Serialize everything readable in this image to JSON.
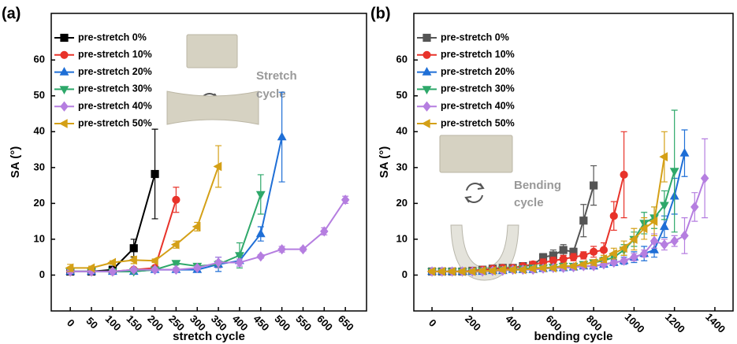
{
  "chart_data": [
    {
      "type": "line",
      "panel_label": "(a)",
      "x_label": "stretch cycle",
      "y_label": "SA (°)",
      "annotation": [
        "Stretch",
        "cycle"
      ],
      "legend": "upper left",
      "xlim": [
        -45,
        700
      ],
      "xticks": [
        0,
        50,
        100,
        150,
        200,
        250,
        300,
        350,
        400,
        450,
        500,
        550,
        600,
        650
      ],
      "ylim": [
        -10,
        73
      ],
      "yticks": [
        0,
        10,
        20,
        30,
        40,
        50,
        60
      ],
      "series": [
        {
          "name": "pre-stretch 0%",
          "color": "#000000",
          "marker": "square",
          "x": [
            0,
            50,
            100,
            150,
            200
          ],
          "values": [
            1,
            1,
            1.5,
            7.5,
            28.2
          ],
          "errors": [
            0.5,
            0.5,
            0.5,
            2.5,
            12.5
          ]
        },
        {
          "name": "pre-stretch 10%",
          "color": "#e8332a",
          "marker": "circle",
          "x": [
            0,
            50,
            100,
            150,
            200,
            250
          ],
          "values": [
            1,
            1,
            1,
            1.5,
            2,
            21
          ],
          "errors": [
            0.5,
            0.5,
            0.5,
            0.5,
            0.5,
            3.5
          ]
        },
        {
          "name": "pre-stretch 20%",
          "color": "#1f6fd6",
          "marker": "triangle-up",
          "x": [
            0,
            50,
            100,
            150,
            200,
            250,
            300,
            350,
            400,
            450,
            500
          ],
          "values": [
            1,
            1,
            1,
            1,
            1.5,
            1.5,
            1.5,
            3,
            4,
            11.5,
            38.5
          ],
          "errors": [
            0.5,
            0.5,
            0.5,
            0.5,
            0.5,
            0.5,
            0.5,
            2,
            1.5,
            2,
            12.5
          ]
        },
        {
          "name": "pre-stretch 30%",
          "color": "#2ea86a",
          "marker": "triangle-down",
          "x": [
            0,
            50,
            100,
            150,
            200,
            250,
            300,
            350,
            400,
            450
          ],
          "values": [
            1,
            1,
            1,
            1,
            1.5,
            3.3,
            2.5,
            3,
            5.5,
            22.5
          ],
          "errors": [
            0.5,
            0.5,
            0.5,
            0.5,
            0.5,
            0.5,
            0.5,
            1,
            3.5,
            5.5
          ]
        },
        {
          "name": "pre-stretch 40%",
          "color": "#b57ee0",
          "marker": "diamond",
          "x": [
            0,
            50,
            100,
            150,
            200,
            250,
            300,
            350,
            400,
            450,
            500,
            550,
            600,
            650
          ],
          "values": [
            1,
            1,
            1,
            1.5,
            1.5,
            1.5,
            2,
            3.5,
            3.5,
            5.2,
            7.2,
            7.2,
            12.2,
            21
          ],
          "errors": [
            0.5,
            0.5,
            0.5,
            0.5,
            0.5,
            0.5,
            0.5,
            1.5,
            1,
            0.5,
            0.8,
            0.5,
            1,
            1
          ]
        },
        {
          "name": "pre-stretch 50%",
          "color": "#d4a017",
          "marker": "triangle-left",
          "x": [
            0,
            50,
            100,
            150,
            200,
            250,
            300,
            350
          ],
          "values": [
            2,
            2,
            3.5,
            4.2,
            4,
            8.5,
            13.5,
            30.3
          ],
          "errors": [
            1,
            0.5,
            0.5,
            1,
            0.5,
            1,
            1.2,
            5.8
          ]
        }
      ]
    },
    {
      "type": "line",
      "panel_label": "(b)",
      "x_label": "bending cycle",
      "y_label": "SA (°)",
      "annotation": [
        "Bending",
        "cycle"
      ],
      "legend": "upper left",
      "xlim": [
        -90,
        1490
      ],
      "xticks": [
        0,
        200,
        400,
        600,
        800,
        1000,
        1200,
        1400
      ],
      "ylim": [
        -10,
        73
      ],
      "yticks": [
        0,
        10,
        20,
        30,
        40,
        50,
        60
      ],
      "series": [
        {
          "name": "pre-stretch 0%",
          "color": "#555555",
          "marker": "square",
          "x": [
            0,
            50,
            100,
            150,
            200,
            250,
            300,
            350,
            400,
            450,
            500,
            550,
            600,
            650,
            700,
            750,
            800
          ],
          "values": [
            1,
            1,
            1,
            1,
            1.2,
            1.5,
            1.8,
            2,
            2,
            2.5,
            2.8,
            5,
            5.5,
            7,
            6.5,
            15.2,
            25
          ],
          "errors": [
            0.5,
            0.5,
            0.5,
            0.5,
            0.5,
            0.5,
            0.5,
            0.5,
            0.5,
            0.8,
            1,
            1,
            1.5,
            1.5,
            1,
            4.5,
            5.5
          ]
        },
        {
          "name": "pre-stretch 10%",
          "color": "#e8332a",
          "marker": "circle",
          "x": [
            0,
            50,
            100,
            150,
            200,
            250,
            300,
            350,
            400,
            450,
            500,
            550,
            600,
            650,
            700,
            750,
            800,
            850,
            900,
            950
          ],
          "values": [
            1,
            1,
            1,
            1,
            1.2,
            1.5,
            1.8,
            2,
            2,
            2.5,
            3,
            3.5,
            4,
            4.5,
            5,
            5.5,
            6.5,
            7,
            16.5,
            28
          ],
          "errors": [
            0.5,
            0.5,
            0.5,
            0.5,
            0.5,
            0.5,
            0.5,
            0.5,
            0.5,
            0.5,
            0.8,
            1,
            1,
            1,
            1,
            1,
            1.5,
            2,
            4,
            12
          ]
        },
        {
          "name": "pre-stretch 20%",
          "color": "#1f6fd6",
          "marker": "triangle-up",
          "x": [
            0,
            50,
            100,
            150,
            200,
            250,
            300,
            350,
            400,
            450,
            500,
            550,
            600,
            650,
            700,
            750,
            800,
            850,
            900,
            950,
            1000,
            1050,
            1100,
            1150,
            1200,
            1250
          ],
          "values": [
            1,
            1,
            1,
            1,
            1,
            1,
            1.2,
            1.2,
            1.5,
            1.5,
            1.5,
            1.8,
            2,
            2,
            2.2,
            2.5,
            2.5,
            3,
            3.5,
            4,
            5,
            6,
            7,
            13.5,
            22,
            34
          ],
          "errors": [
            0.5,
            0.5,
            0.5,
            0.5,
            0.5,
            0.5,
            0.5,
            0.5,
            0.5,
            0.5,
            0.5,
            0.5,
            0.5,
            0.5,
            0.5,
            0.5,
            0.5,
            0.5,
            0.8,
            1,
            1.5,
            2,
            2,
            3,
            5,
            6.5
          ]
        },
        {
          "name": "pre-stretch 30%",
          "color": "#2ea86a",
          "marker": "triangle-down",
          "x": [
            0,
            50,
            100,
            150,
            200,
            250,
            300,
            350,
            400,
            450,
            500,
            550,
            600,
            650,
            700,
            750,
            800,
            850,
            900,
            950,
            1000,
            1050,
            1100,
            1150,
            1200
          ],
          "values": [
            1,
            1,
            1,
            1,
            1,
            1.2,
            1.2,
            1.5,
            1.5,
            1.8,
            2,
            2,
            2.2,
            2.5,
            2.5,
            3,
            3.5,
            4,
            5,
            7,
            10,
            14.5,
            16,
            19.5,
            29
          ],
          "errors": [
            0.5,
            0.5,
            0.5,
            0.5,
            0.5,
            0.5,
            0.5,
            0.5,
            0.5,
            0.5,
            0.5,
            0.5,
            0.5,
            0.5,
            0.5,
            0.5,
            0.5,
            1,
            1,
            1.5,
            2,
            3,
            3,
            4,
            17
          ]
        },
        {
          "name": "pre-stretch 40%",
          "color": "#b57ee0",
          "marker": "diamond",
          "x": [
            0,
            50,
            100,
            150,
            200,
            250,
            300,
            350,
            400,
            450,
            500,
            550,
            600,
            650,
            700,
            750,
            800,
            850,
            900,
            950,
            1000,
            1050,
            1100,
            1150,
            1200,
            1250,
            1300,
            1350
          ],
          "values": [
            1,
            1,
            1,
            1,
            1,
            1,
            1.2,
            1.2,
            1.5,
            1.5,
            1.5,
            1.8,
            2,
            2,
            2.2,
            2.5,
            2.5,
            3,
            3.5,
            4,
            5,
            6,
            9.5,
            8.5,
            9.5,
            11,
            19,
            27
          ],
          "errors": [
            0.5,
            0.5,
            0.5,
            0.5,
            0.5,
            0.5,
            0.5,
            0.5,
            0.5,
            0.5,
            0.5,
            0.5,
            0.5,
            0.5,
            0.5,
            0.5,
            0.5,
            0.5,
            0.5,
            0.5,
            1,
            1,
            2,
            1.5,
            1.5,
            5,
            4,
            11
          ]
        },
        {
          "name": "pre-stretch 50%",
          "color": "#d4a017",
          "marker": "triangle-left",
          "x": [
            0,
            50,
            100,
            150,
            200,
            250,
            300,
            350,
            400,
            450,
            500,
            550,
            600,
            650,
            700,
            750,
            800,
            850,
            900,
            950,
            1000,
            1050,
            1100,
            1150
          ],
          "values": [
            1,
            1,
            1,
            1,
            1,
            1.2,
            1.2,
            1.5,
            1.5,
            1.5,
            1.8,
            2,
            2,
            2.5,
            2.5,
            3,
            3.5,
            4.5,
            6,
            7.5,
            10,
            13,
            15,
            33
          ],
          "errors": [
            0.5,
            0.5,
            0.5,
            0.5,
            0.5,
            0.5,
            0.5,
            0.5,
            0.5,
            0.5,
            0.5,
            0.5,
            0.5,
            0.5,
            0.5,
            0.5,
            0.8,
            1,
            1.5,
            2,
            3,
            3,
            4,
            7
          ]
        }
      ]
    }
  ]
}
